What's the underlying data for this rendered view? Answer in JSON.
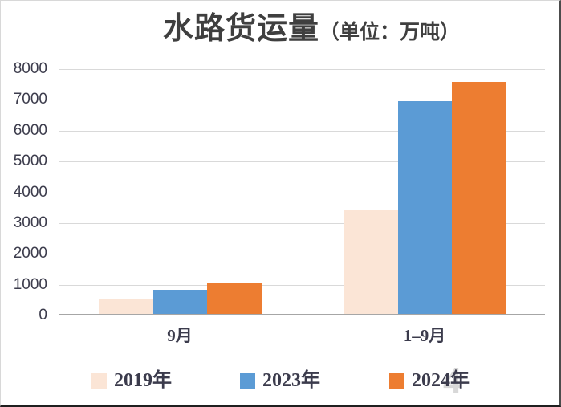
{
  "title": {
    "main": "水路货运量",
    "unit": "（单位：万吨）"
  },
  "watermark": {
    "text": "4"
  },
  "colors": {
    "series_2019": "#fbe5d6",
    "series_2023": "#5b9bd5",
    "series_2024": "#ed7d31",
    "gridline": "#d9d9d9",
    "baseline": "#a6a6a6",
    "text": "#3b3b4c",
    "title_text": "#3f3f3f"
  },
  "chart_data": {
    "type": "bar",
    "title": "水路货运量（单位：万吨）",
    "categories": [
      "9月",
      "1–9月"
    ],
    "series": [
      {
        "name": "2019年",
        "color": "#fbe5d6",
        "values": [
          480,
          3400
        ]
      },
      {
        "name": "2023年",
        "color": "#5b9bd5",
        "values": [
          790,
          6900
        ]
      },
      {
        "name": "2024年",
        "color": "#ed7d31",
        "values": [
          1010,
          7530
        ]
      }
    ],
    "xlabel": "",
    "ylabel": "",
    "ylim": [
      0,
      8000
    ],
    "yticks": [
      0,
      1000,
      2000,
      3000,
      4000,
      5000,
      6000,
      7000,
      8000
    ],
    "grid": true,
    "legend_position": "bottom"
  }
}
